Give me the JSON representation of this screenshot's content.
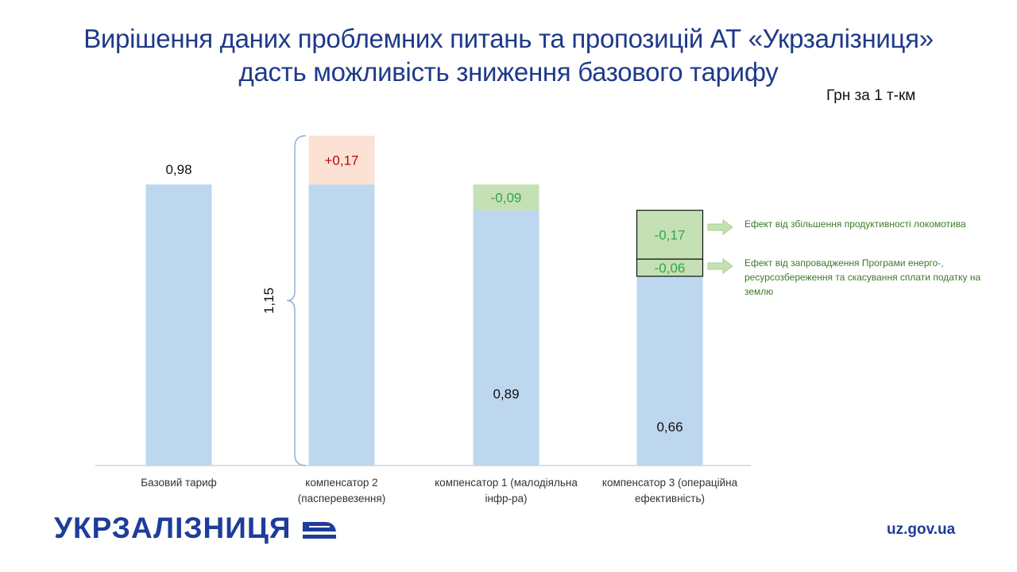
{
  "title_line1": "Вирішення даних проблемних питань та пропозицій АТ «Укрзалізниця»",
  "title_line2": "дасть можливість зниження базового тарифу",
  "unit_label": "Грн за 1 т-км",
  "brace_label": "1,15",
  "annotations": [
    "Ефект від збільшення продуктивності локомотива",
    "Ефект від запровадження Програми енерго-, ресурсозбереження та скасування сплати податку на землю"
  ],
  "footer": {
    "logo_text": "УКРЗАЛІЗНИЦЯ",
    "website": "uz.gov.ua"
  },
  "colors": {
    "title": "#1f3a8a",
    "base_bar": "#bdd7ee",
    "increase": "#fbe2d5",
    "decrease": "#c5e0b4",
    "increase_text": "#c00000",
    "decrease_text": "#2ea84a",
    "brand": "#1f3d99",
    "arrow": "#c5e0b4"
  },
  "chart_data": {
    "type": "bar",
    "stacked": true,
    "categories": [
      "Базовий тариф",
      "компенсатор 2 (пасперевезення)",
      "компенсатор 1 (малодіяльна інфр-ра)",
      "компенсатор 3 (операційна ефективність)"
    ],
    "category_lines": [
      [
        "Базовий тариф"
      ],
      [
        "компенсатор 2",
        "(пасперевезення)"
      ],
      [
        "компенсатор 1 (малодіяльна",
        "інфр-ра)"
      ],
      [
        "компенсатор 3 (операційна",
        "ефективність)"
      ]
    ],
    "ylim": [
      0,
      1.2
    ],
    "bars": [
      {
        "base": 0.98,
        "base_label": "0,98",
        "label_position": "above",
        "segments": []
      },
      {
        "base": 0.98,
        "base_label": "",
        "segments": [
          {
            "value": 0.17,
            "label": "+0,17",
            "kind": "increase"
          }
        ]
      },
      {
        "base": 0.89,
        "base_label": "0,89",
        "label_position": "inside",
        "segments": [
          {
            "value": 0.09,
            "label": "-0,09",
            "kind": "decrease"
          }
        ]
      },
      {
        "base": 0.66,
        "base_label": "0,66",
        "label_position": "inside",
        "segments": [
          {
            "value": 0.06,
            "label": "-0,06",
            "kind": "decrease",
            "outlined": true
          },
          {
            "value": 0.17,
            "label": "-0,17",
            "kind": "decrease",
            "outlined": true
          }
        ]
      }
    ]
  }
}
